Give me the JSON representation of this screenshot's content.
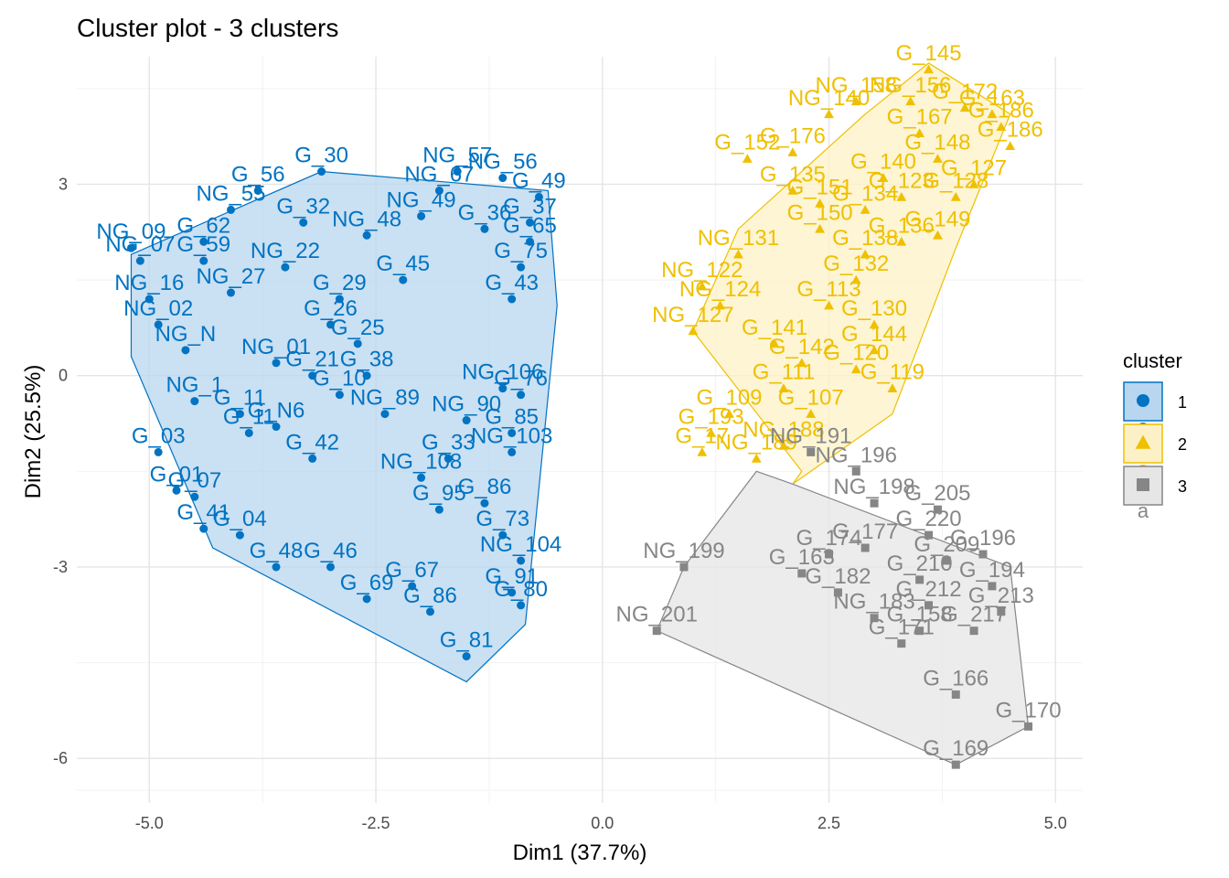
{
  "chart_data": {
    "type": "scatter",
    "title": "Cluster plot - 3 clusters",
    "xlabel": "Dim1 (37.7%)",
    "ylabel": "Dim2 (25.5%)",
    "xlim": [
      -5.8,
      5.3
    ],
    "ylim": [
      -6.7,
      5.0
    ],
    "xticks": [
      -5.0,
      -2.5,
      0.0,
      2.5,
      5.0
    ],
    "xtick_labels": [
      "-5.0",
      "-2.5",
      "0.0",
      "2.5",
      "5.0"
    ],
    "yticks": [
      -6,
      -3,
      0,
      3
    ],
    "ytick_labels": [
      "-6",
      "-3",
      "0",
      "3"
    ],
    "grid": true,
    "legend": {
      "title": "cluster",
      "position": "right",
      "entries": [
        "1",
        "2",
        "3"
      ],
      "key_letter": "a"
    },
    "series": [
      {
        "name": "1",
        "color": "#0073C2",
        "fill": "#B8D6EF",
        "marker": "circle",
        "hull": [
          [
            -5.2,
            1.9
          ],
          [
            -3.1,
            3.2
          ],
          [
            -0.6,
            2.9
          ],
          [
            -0.5,
            1.1
          ],
          [
            -0.85,
            -3.9
          ],
          [
            -1.5,
            -4.8
          ],
          [
            -4.3,
            -2.7
          ],
          [
            -5.2,
            0.3
          ]
        ],
        "points": [
          {
            "x": -5.2,
            "y": 2.0,
            "label": "NG_09"
          },
          {
            "x": -5.1,
            "y": 1.8,
            "label": "NG_07"
          },
          {
            "x": -5.0,
            "y": 1.2,
            "label": "NG_16"
          },
          {
            "x": -4.9,
            "y": 0.8,
            "label": "NG_02"
          },
          {
            "x": -4.6,
            "y": 0.4,
            "label": "NG_N"
          },
          {
            "x": -4.9,
            "y": -1.2,
            "label": "G_03"
          },
          {
            "x": -4.7,
            "y": -1.8,
            "label": "G_01"
          },
          {
            "x": -4.5,
            "y": -1.9,
            "label": "G_07"
          },
          {
            "x": -4.4,
            "y": -2.4,
            "label": "G_41"
          },
          {
            "x": -4.0,
            "y": -2.5,
            "label": "G_04"
          },
          {
            "x": -3.6,
            "y": -3.0,
            "label": "G_48"
          },
          {
            "x": -3.0,
            "y": -3.0,
            "label": "G_46"
          },
          {
            "x": -2.6,
            "y": -3.5,
            "label": "G_69"
          },
          {
            "x": -2.1,
            "y": -3.3,
            "label": "G_67"
          },
          {
            "x": -1.9,
            "y": -3.7,
            "label": "G_86"
          },
          {
            "x": -1.5,
            "y": -4.4,
            "label": "G_81"
          },
          {
            "x": -1.0,
            "y": -3.4,
            "label": "G_91"
          },
          {
            "x": -0.9,
            "y": -3.6,
            "label": "G_80"
          },
          {
            "x": -0.9,
            "y": -2.9,
            "label": "NG_104"
          },
          {
            "x": -1.1,
            "y": -2.5,
            "label": "G_73"
          },
          {
            "x": -1.0,
            "y": -1.2,
            "label": "NG_103"
          },
          {
            "x": -1.0,
            "y": -0.9,
            "label": "G_85"
          },
          {
            "x": -1.1,
            "y": -0.2,
            "label": "NG_106"
          },
          {
            "x": -0.9,
            "y": -0.3,
            "label": "G_76"
          },
          {
            "x": -1.0,
            "y": 1.2,
            "label": "G_43"
          },
          {
            "x": -0.9,
            "y": 1.7,
            "label": "G_75"
          },
          {
            "x": -0.8,
            "y": 2.1,
            "label": "G_65"
          },
          {
            "x": -0.8,
            "y": 2.4,
            "label": "G_37"
          },
          {
            "x": -0.7,
            "y": 2.8,
            "label": "G_49"
          },
          {
            "x": -1.1,
            "y": 3.1,
            "label": "NG_56"
          },
          {
            "x": -1.6,
            "y": 3.2,
            "label": "NG_57"
          },
          {
            "x": -1.8,
            "y": 2.9,
            "label": "NG_67"
          },
          {
            "x": -3.1,
            "y": 3.2,
            "label": "G_30"
          },
          {
            "x": -3.8,
            "y": 2.9,
            "label": "G_56"
          },
          {
            "x": -4.1,
            "y": 2.6,
            "label": "NG_55"
          },
          {
            "x": -4.4,
            "y": 2.1,
            "label": "G_62"
          },
          {
            "x": -4.4,
            "y": 1.8,
            "label": "G_59"
          },
          {
            "x": -4.1,
            "y": 1.3,
            "label": "NG_27"
          },
          {
            "x": -3.5,
            "y": 1.7,
            "label": "NG_22"
          },
          {
            "x": -2.2,
            "y": 1.5,
            "label": "G_45"
          },
          {
            "x": -2.9,
            "y": 1.2,
            "label": "G_29"
          },
          {
            "x": -3.0,
            "y": 0.8,
            "label": "G_26"
          },
          {
            "x": -2.7,
            "y": 0.5,
            "label": "G_25"
          },
          {
            "x": -2.6,
            "y": 0.0,
            "label": "G_38"
          },
          {
            "x": -2.9,
            "y": -0.3,
            "label": "G_10"
          },
          {
            "x": -4.5,
            "y": -0.4,
            "label": "NG_1"
          },
          {
            "x": -4.0,
            "y": -0.6,
            "label": "G_11"
          },
          {
            "x": -3.9,
            "y": -0.9,
            "label": "G_11"
          },
          {
            "x": -3.6,
            "y": -0.8,
            "label": "G_N6"
          },
          {
            "x": -3.2,
            "y": -1.3,
            "label": "G_42"
          },
          {
            "x": -2.0,
            "y": -1.6,
            "label": "NG_108"
          },
          {
            "x": -1.8,
            "y": -2.1,
            "label": "G_95"
          },
          {
            "x": -1.3,
            "y": -2.0,
            "label": "G_86"
          },
          {
            "x": -2.6,
            "y": 2.2,
            "label": "NG_48"
          },
          {
            "x": -2.0,
            "y": 2.5,
            "label": "NG_49"
          },
          {
            "x": -1.3,
            "y": 2.3,
            "label": "G_36"
          },
          {
            "x": -3.3,
            "y": 2.4,
            "label": "G_32"
          },
          {
            "x": -2.4,
            "y": -0.6,
            "label": "NG_89"
          },
          {
            "x": -1.5,
            "y": -0.7,
            "label": "NG_90"
          },
          {
            "x": -1.7,
            "y": -1.3,
            "label": "G_33"
          },
          {
            "x": -3.6,
            "y": 0.2,
            "label": "NG_01"
          },
          {
            "x": -3.2,
            "y": 0.0,
            "label": "G_21"
          }
        ]
      },
      {
        "name": "2",
        "color": "#EFC000",
        "fill": "#FCF1C6",
        "marker": "triangle",
        "hull": [
          [
            2.2,
            -1.5
          ],
          [
            1.0,
            0.7
          ],
          [
            1.5,
            2.3
          ],
          [
            2.9,
            4.1
          ],
          [
            3.6,
            4.9
          ],
          [
            4.5,
            4.1
          ],
          [
            3.9,
            2.0
          ],
          [
            3.2,
            -0.6
          ],
          [
            2.1,
            -1.7
          ]
        ],
        "points": [
          {
            "x": 3.6,
            "y": 4.8,
            "label": "G_145"
          },
          {
            "x": 3.4,
            "y": 4.3,
            "label": "NG_156"
          },
          {
            "x": 4.3,
            "y": 4.1,
            "label": "G_163"
          },
          {
            "x": 4.4,
            "y": 3.9,
            "label": "G_186"
          },
          {
            "x": 4.5,
            "y": 3.6,
            "label": "G_186"
          },
          {
            "x": 4.1,
            "y": 3.0,
            "label": "G_127"
          },
          {
            "x": 3.9,
            "y": 2.8,
            "label": "G_128"
          },
          {
            "x": 3.7,
            "y": 2.2,
            "label": "G_149"
          },
          {
            "x": 3.3,
            "y": 2.1,
            "label": "G_136"
          },
          {
            "x": 2.9,
            "y": 1.9,
            "label": "G_138"
          },
          {
            "x": 2.4,
            "y": 2.3,
            "label": "G_150"
          },
          {
            "x": 2.8,
            "y": 1.5,
            "label": "G_132"
          },
          {
            "x": 2.5,
            "y": 1.1,
            "label": "G_113"
          },
          {
            "x": 3.0,
            "y": 0.8,
            "label": "G_130"
          },
          {
            "x": 3.0,
            "y": 0.4,
            "label": "G_144"
          },
          {
            "x": 2.8,
            "y": 0.1,
            "label": "G_120"
          },
          {
            "x": 3.2,
            "y": -0.2,
            "label": "G_119"
          },
          {
            "x": 2.0,
            "y": -0.2,
            "label": "G_111"
          },
          {
            "x": 2.3,
            "y": -0.6,
            "label": "G_107"
          },
          {
            "x": 1.4,
            "y": -0.6,
            "label": "G_109"
          },
          {
            "x": 1.2,
            "y": -0.9,
            "label": "G_193"
          },
          {
            "x": 1.1,
            "y": -1.2,
            "label": "G_17"
          },
          {
            "x": 1.7,
            "y": -1.3,
            "label": "NG_189"
          },
          {
            "x": 2.0,
            "y": -1.1,
            "label": "NG_188"
          },
          {
            "x": 1.6,
            "y": 3.4,
            "label": "G_152"
          },
          {
            "x": 2.1,
            "y": 3.5,
            "label": "G_176"
          },
          {
            "x": 2.1,
            "y": 2.9,
            "label": "G_135"
          },
          {
            "x": 2.4,
            "y": 2.7,
            "label": "G_151"
          },
          {
            "x": 2.9,
            "y": 2.6,
            "label": "G_134"
          },
          {
            "x": 3.3,
            "y": 2.8,
            "label": "G_123"
          },
          {
            "x": 3.7,
            "y": 3.4,
            "label": "G_148"
          },
          {
            "x": 3.1,
            "y": 3.1,
            "label": "G_140"
          },
          {
            "x": 2.5,
            "y": 4.1,
            "label": "NG_140"
          },
          {
            "x": 2.8,
            "y": 4.3,
            "label": "NG_158"
          },
          {
            "x": 1.1,
            "y": 1.4,
            "label": "NG_122"
          },
          {
            "x": 1.3,
            "y": 1.1,
            "label": "NG_124"
          },
          {
            "x": 1.0,
            "y": 0.7,
            "label": "NG_127"
          },
          {
            "x": 1.5,
            "y": 1.9,
            "label": "NG_131"
          },
          {
            "x": 1.9,
            "y": 0.5,
            "label": "G_141"
          },
          {
            "x": 2.2,
            "y": 0.2,
            "label": "G_142"
          },
          {
            "x": 3.5,
            "y": 3.8,
            "label": "G_167"
          },
          {
            "x": 4.0,
            "y": 4.2,
            "label": "G_172"
          }
        ]
      },
      {
        "name": "3",
        "color": "#868686",
        "fill": "#E6E6E6",
        "marker": "square",
        "hull": [
          [
            0.6,
            -4.0
          ],
          [
            0.9,
            -3.0
          ],
          [
            1.7,
            -1.5
          ],
          [
            2.1,
            -1.7
          ],
          [
            4.5,
            -3.0
          ],
          [
            4.7,
            -5.5
          ],
          [
            3.9,
            -6.1
          ]
        ],
        "points": [
          {
            "x": 0.6,
            "y": -4.0,
            "label": "NG_201"
          },
          {
            "x": 0.9,
            "y": -3.0,
            "label": "NG_199"
          },
          {
            "x": 2.3,
            "y": -1.2,
            "label": "NG_191"
          },
          {
            "x": 2.8,
            "y": -1.5,
            "label": "NG_196"
          },
          {
            "x": 3.0,
            "y": -2.0,
            "label": "NG_198"
          },
          {
            "x": 3.7,
            "y": -2.1,
            "label": "G_205"
          },
          {
            "x": 3.6,
            "y": -2.5,
            "label": "G_220"
          },
          {
            "x": 4.2,
            "y": -2.8,
            "label": "G_196"
          },
          {
            "x": 4.3,
            "y": -3.3,
            "label": "G_194"
          },
          {
            "x": 4.4,
            "y": -3.7,
            "label": "G_213"
          },
          {
            "x": 4.1,
            "y": -4.0,
            "label": "G_217"
          },
          {
            "x": 3.5,
            "y": -4.0,
            "label": "G_158"
          },
          {
            "x": 3.3,
            "y": -4.2,
            "label": "G_171"
          },
          {
            "x": 3.9,
            "y": -5.0,
            "label": "G_166"
          },
          {
            "x": 4.7,
            "y": -5.5,
            "label": "G_170"
          },
          {
            "x": 3.9,
            "y": -6.1,
            "label": "G_169"
          },
          {
            "x": 2.2,
            "y": -3.1,
            "label": "G_163"
          },
          {
            "x": 2.6,
            "y": -3.4,
            "label": "G_182"
          },
          {
            "x": 3.0,
            "y": -3.8,
            "label": "NG_183"
          },
          {
            "x": 2.5,
            "y": -2.8,
            "label": "G_174"
          },
          {
            "x": 2.9,
            "y": -2.7,
            "label": "G_177"
          },
          {
            "x": 3.8,
            "y": -2.9,
            "label": "G_209"
          },
          {
            "x": 3.5,
            "y": -3.2,
            "label": "G_210"
          },
          {
            "x": 3.6,
            "y": -3.6,
            "label": "G_212"
          }
        ]
      }
    ]
  }
}
